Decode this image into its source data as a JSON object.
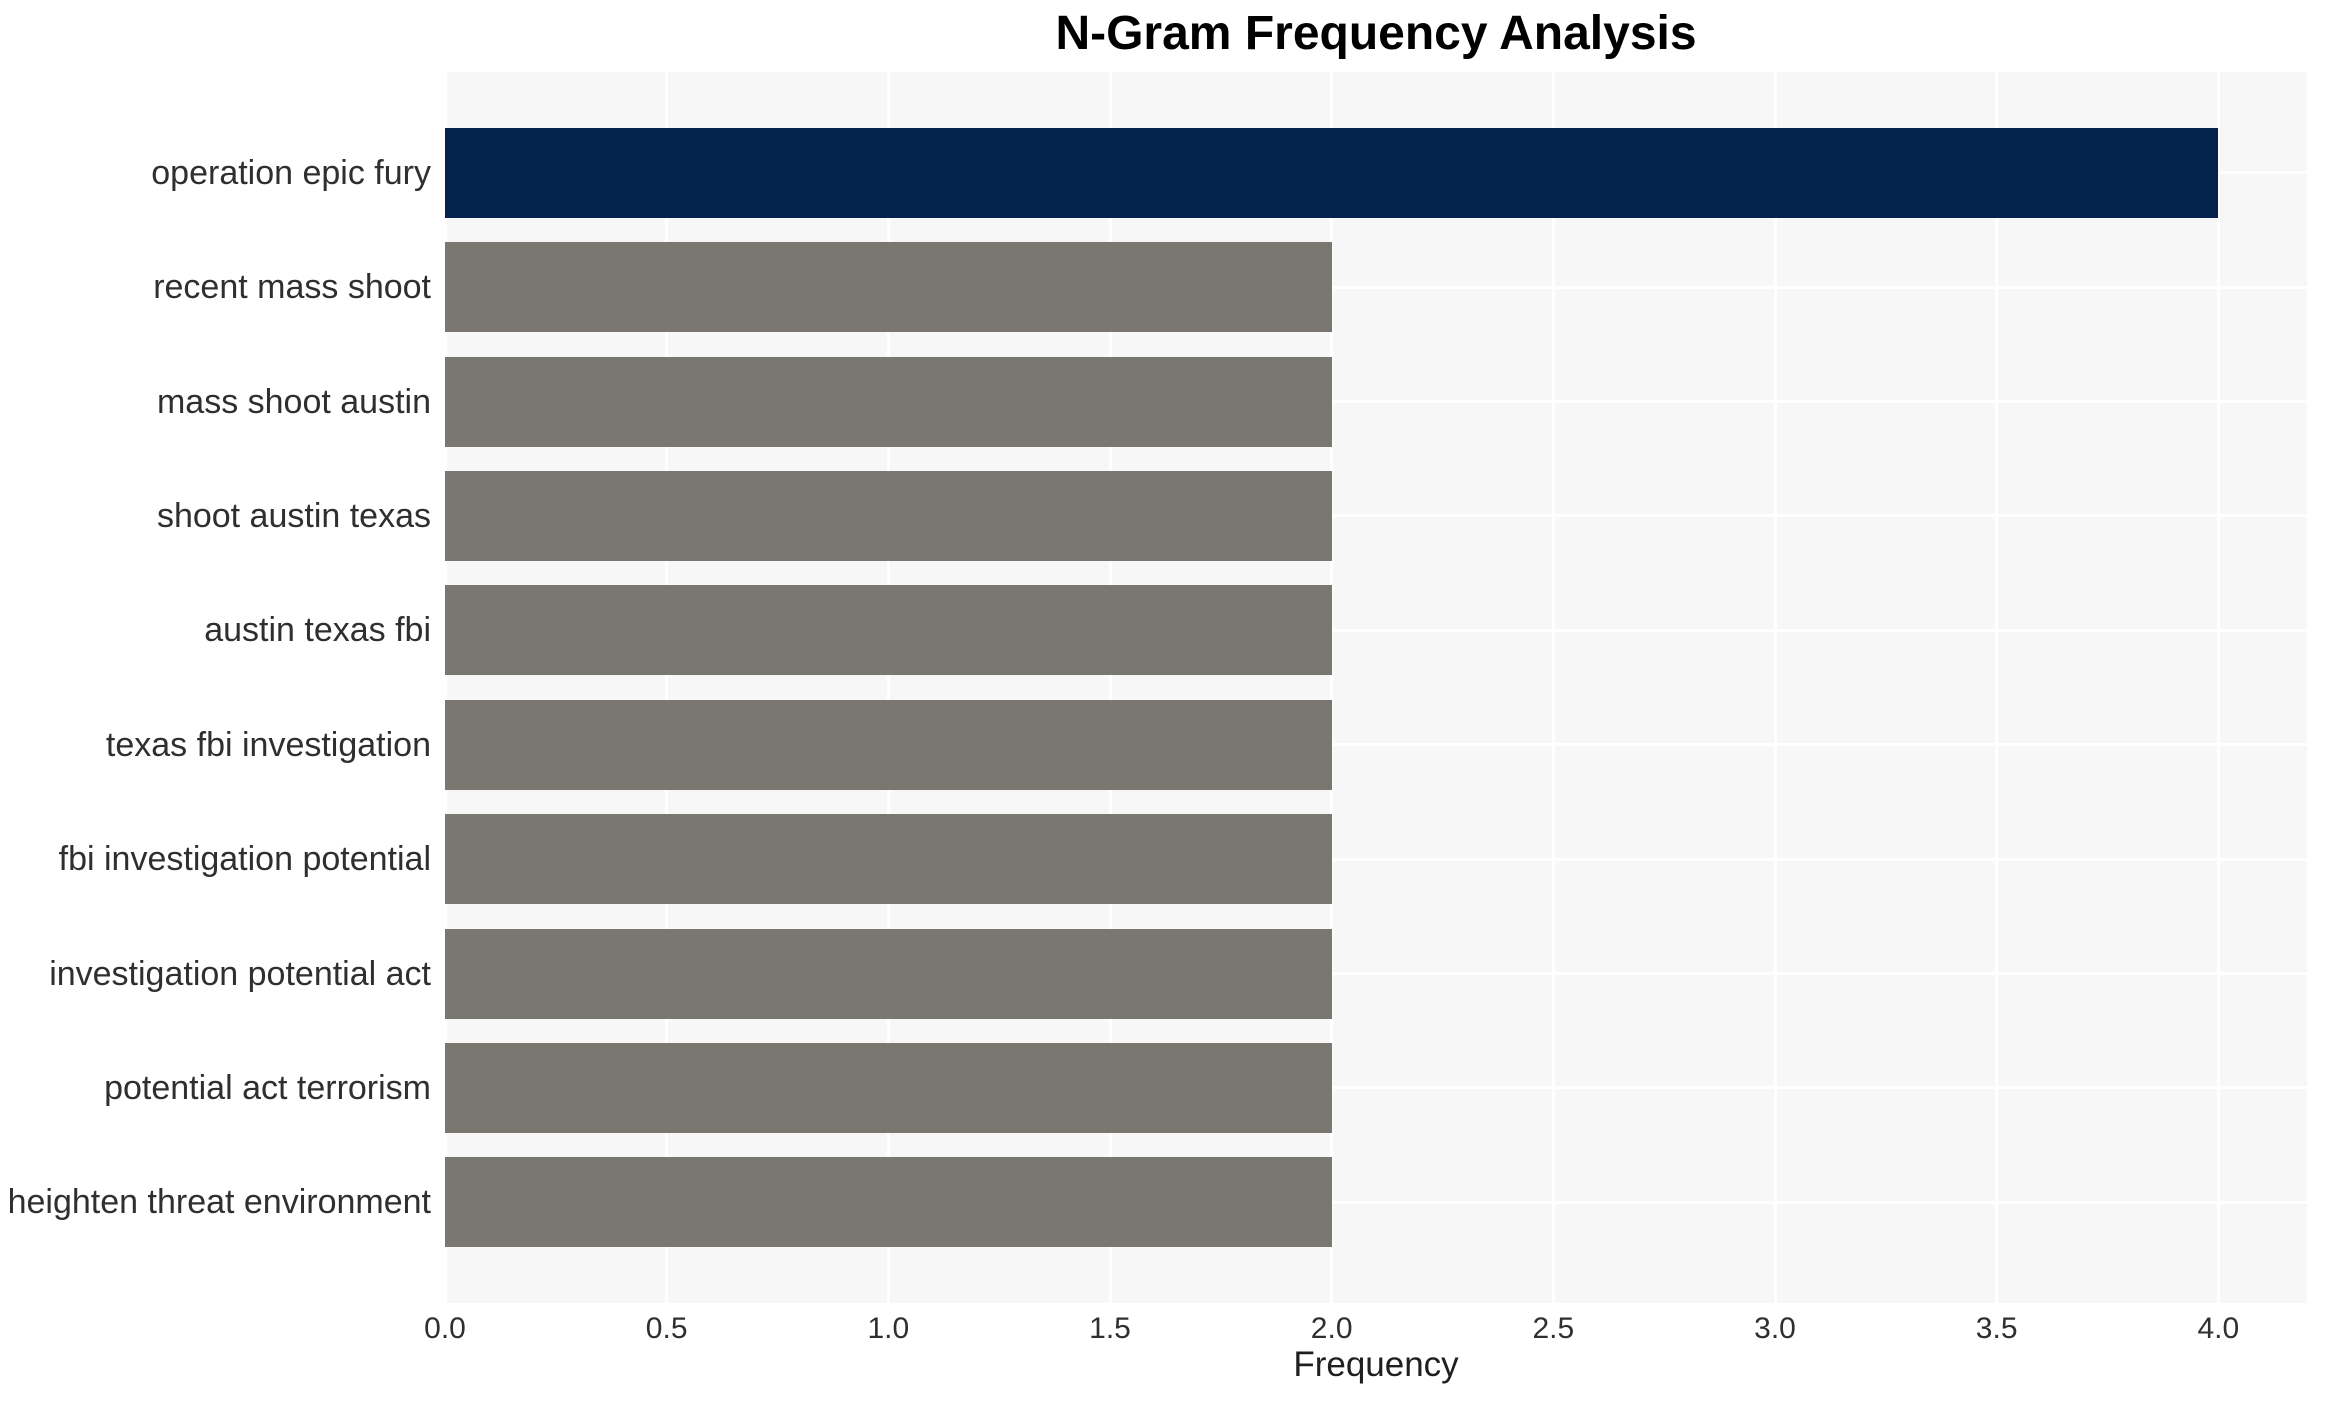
{
  "figure": {
    "title": "N-Gram Frequency Analysis",
    "xlabel": "Frequency"
  },
  "chart_data": {
    "type": "bar",
    "orientation": "horizontal",
    "title": "N-Gram Frequency Analysis",
    "xlabel": "Frequency",
    "ylabel": "",
    "categories": [
      "operation epic fury",
      "recent mass shoot",
      "mass shoot austin",
      "shoot austin texas",
      "austin texas fbi",
      "texas fbi investigation",
      "fbi investigation potential",
      "investigation potential act",
      "potential act terrorism",
      "heighten threat environment"
    ],
    "values": [
      4,
      2,
      2,
      2,
      2,
      2,
      2,
      2,
      2,
      2
    ],
    "highlight_index": 0,
    "xticks": [
      0.0,
      0.5,
      1.0,
      1.5,
      2.0,
      2.5,
      3.0,
      3.5,
      4.0
    ],
    "xtick_labels": [
      "0.0",
      "0.5",
      "1.0",
      "1.5",
      "2.0",
      "2.5",
      "3.0",
      "3.5",
      "4.0"
    ],
    "xlim": [
      0,
      4.2
    ],
    "grid": true,
    "legend": false,
    "colors": {
      "bar_highlight": "#03234d",
      "bar_default": "#7a7771",
      "plot_background": "#f7f7f7",
      "gridline": "#ffffff",
      "tick_text": "#2f2f2f",
      "title_text": "#000000"
    }
  }
}
